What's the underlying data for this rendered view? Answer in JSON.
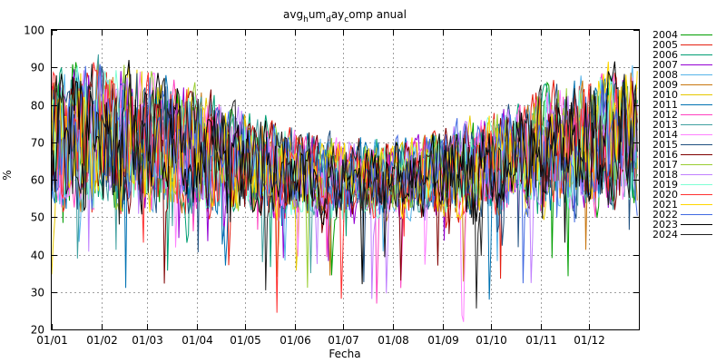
{
  "chart_data": {
    "type": "line",
    "title_parts": [
      "avg",
      "h",
      "um",
      "d",
      "ay",
      "c",
      "omp anual"
    ],
    "xlabel": "Fecha",
    "ylabel": "%",
    "ylim": [
      20,
      100
    ],
    "yticks": [
      20,
      30,
      40,
      50,
      60,
      70,
      80,
      90,
      100
    ],
    "xticks": [
      "01/01",
      "01/02",
      "01/03",
      "01/04",
      "01/05",
      "01/06",
      "01/07",
      "01/08",
      "01/09",
      "01/10",
      "01/11",
      "01/12"
    ],
    "x_days_in_year": 365,
    "grid": true,
    "legend_position": "right",
    "series": [
      {
        "name": "2004",
        "color": "#009e00"
      },
      {
        "name": "2005",
        "color": "#e51e10"
      },
      {
        "name": "2006",
        "color": "#009e73"
      },
      {
        "name": "2007",
        "color": "#9400d3"
      },
      {
        "name": "2008",
        "color": "#56b4e9"
      },
      {
        "name": "2009",
        "color": "#c8760f"
      },
      {
        "name": "2010",
        "color": "#e6c800"
      },
      {
        "name": "2011",
        "color": "#0072b2"
      },
      {
        "name": "2012",
        "color": "#ff40c0"
      },
      {
        "name": "2013",
        "color": "#40a0a0"
      },
      {
        "name": "2014",
        "color": "#ff80ff"
      },
      {
        "name": "2015",
        "color": "#1f4f7f"
      },
      {
        "name": "2016",
        "color": "#7f0000"
      },
      {
        "name": "2017",
        "color": "#9acd32"
      },
      {
        "name": "2018",
        "color": "#c080ff"
      },
      {
        "name": "2019",
        "color": "#7fffd4"
      },
      {
        "name": "2020",
        "color": "#ff3030"
      },
      {
        "name": "2021",
        "color": "#ffd700"
      },
      {
        "name": "2022",
        "color": "#4169e1"
      },
      {
        "name": "2023",
        "color": "#000000"
      },
      {
        "name": "2024",
        "color": "#202020"
      }
    ]
  }
}
